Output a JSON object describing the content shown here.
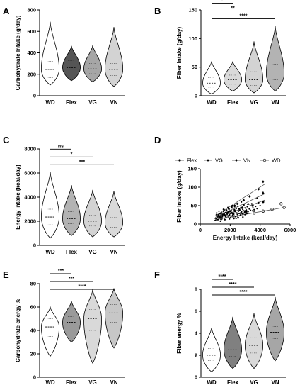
{
  "chart_data": [
    {
      "panel": "A",
      "type": "violin",
      "ylabel": "Carbohydrate Intake (g/day)",
      "categories": [
        "WD",
        "Flex",
        "VG",
        "VN"
      ],
      "ylim": [
        0,
        800
      ],
      "yticks": [
        "0",
        "200",
        "400",
        "600",
        "800"
      ],
      "fills": [
        "#ffffff",
        "#555555",
        "#a6a6a6",
        "#d3d3d3"
      ],
      "violins": [
        {
          "min": 100,
          "q1": 170,
          "median": 245,
          "q3": 320,
          "max": 690
        },
        {
          "min": 140,
          "q1": 220,
          "median": 262,
          "q3": 330,
          "max": 465
        },
        {
          "min": 130,
          "q1": 205,
          "median": 250,
          "q3": 300,
          "max": 470
        },
        {
          "min": 85,
          "q1": 190,
          "median": 245,
          "q3": 300,
          "max": 640
        }
      ],
      "significance": []
    },
    {
      "panel": "B",
      "type": "violin",
      "ylabel": "Fiber Intake (g/day)",
      "categories": [
        "WD",
        "Flex",
        "VG",
        "VN"
      ],
      "ylim": [
        0,
        150
      ],
      "yticks": [
        "0",
        "50",
        "100",
        "150"
      ],
      "fills": [
        "#ffffff",
        "#d9d9d9",
        "#d3d3d3",
        "#b3b3b3"
      ],
      "violins": [
        {
          "min": 3,
          "q1": 15,
          "median": 22,
          "q3": 32,
          "max": 60
        },
        {
          "min": 8,
          "q1": 20,
          "median": 28,
          "q3": 36,
          "max": 60
        },
        {
          "min": 5,
          "q1": 18,
          "median": 28,
          "q3": 42,
          "max": 95
        },
        {
          "min": 8,
          "q1": 28,
          "median": 38,
          "q3": 55,
          "max": 122
        }
      ],
      "significance": [
        {
          "from": "WD",
          "to": "Flex",
          "label": "*"
        },
        {
          "from": "WD",
          "to": "VG",
          "label": "**"
        },
        {
          "from": "WD",
          "to": "VN",
          "label": "****"
        }
      ]
    },
    {
      "panel": "C",
      "type": "violin",
      "ylabel": "Energy intake (kcal/day)",
      "categories": [
        "WD",
        "Flex",
        "VG",
        "VN"
      ],
      "ylim": [
        0,
        8000
      ],
      "yticks": [
        "0",
        "2000",
        "4000",
        "6000",
        "8000"
      ],
      "fills": [
        "#ffffff",
        "#b3b3b3",
        "#d3d3d3",
        "#d9d9d9"
      ],
      "violins": [
        {
          "min": 600,
          "q1": 1700,
          "median": 2350,
          "q3": 3000,
          "max": 6100
        },
        {
          "min": 800,
          "q1": 1800,
          "median": 2200,
          "q3": 2800,
          "max": 5000
        },
        {
          "min": 700,
          "q1": 1600,
          "median": 2000,
          "q3": 2500,
          "max": 4600
        },
        {
          "min": 700,
          "q1": 1500,
          "median": 1850,
          "q3": 2300,
          "max": 4500
        }
      ],
      "significance": [
        {
          "from": "WD",
          "to": "Flex",
          "label": "ns"
        },
        {
          "from": "WD",
          "to": "VG",
          "label": "*"
        },
        {
          "from": "WD",
          "to": "VN",
          "label": "***"
        }
      ]
    },
    {
      "panel": "D",
      "type": "scatter",
      "xlabel": "Energy Intake (kcal/day)",
      "ylabel": "Fiber Intake (g/day)",
      "xlim": [
        0,
        6000
      ],
      "ylim": [
        0,
        150
      ],
      "xticks": [
        "0",
        "2000",
        "4000",
        "6000"
      ],
      "yticks": [
        "0",
        "50",
        "100",
        "150"
      ],
      "legend_position": "top",
      "series": [
        {
          "name": "Flex",
          "marker": "filled-circle",
          "color": "#000000",
          "points": [
            [
              1200,
              18
            ],
            [
              1500,
              25
            ],
            [
              1800,
              30
            ],
            [
              2200,
              28
            ],
            [
              2600,
              40
            ],
            [
              3000,
              35
            ],
            [
              3500,
              50
            ],
            [
              4200,
              60
            ],
            [
              1700,
              22
            ],
            [
              2000,
              35
            ]
          ],
          "fit": [
            [
              1000,
              15
            ],
            [
              4300,
              65
            ]
          ]
        },
        {
          "name": "VG",
          "marker": "filled-triangle",
          "color": "#000000",
          "points": [
            [
              1300,
              20
            ],
            [
              1600,
              28
            ],
            [
              1900,
              32
            ],
            [
              2300,
              38
            ],
            [
              2800,
              45
            ],
            [
              3200,
              55
            ],
            [
              3800,
              70
            ],
            [
              4200,
              85
            ],
            [
              2100,
              30
            ]
          ],
          "fit": [
            [
              1000,
              18
            ],
            [
              4300,
              82
            ]
          ]
        },
        {
          "name": "VN",
          "marker": "filled-diamond",
          "color": "#000000",
          "points": [
            [
              1100,
              25
            ],
            [
              1400,
              30
            ],
            [
              1600,
              38
            ],
            [
              1900,
              42
            ],
            [
              2100,
              48
            ],
            [
              2500,
              55
            ],
            [
              2900,
              65
            ],
            [
              3300,
              75
            ],
            [
              3900,
              95
            ],
            [
              4200,
              115
            ],
            [
              2300,
              50
            ]
          ],
          "fit": [
            [
              1000,
              22
            ],
            [
              4300,
              108
            ]
          ]
        },
        {
          "name": "WD",
          "marker": "open-circle",
          "color": "#000000",
          "points": [
            [
              1000,
              12
            ],
            [
              1400,
              15
            ],
            [
              1800,
              20
            ],
            [
              2200,
              22
            ],
            [
              2600,
              25
            ],
            [
              3000,
              28
            ],
            [
              3600,
              30
            ],
            [
              4200,
              35
            ],
            [
              4800,
              40
            ],
            [
              5400,
              55
            ],
            [
              5600,
              45
            ],
            [
              2400,
              18
            ]
          ],
          "fit": [
            [
              1000,
              12
            ],
            [
              5600,
              45
            ]
          ]
        },
        {
          "name": "",
          "marker": "small-dot",
          "color": "#000000",
          "points": [
            [
              1000,
              10
            ],
            [
              1050,
              15
            ],
            [
              1120,
              20
            ],
            [
              1180,
              12
            ],
            [
              1220,
              25
            ],
            [
              1280,
              18
            ],
            [
              1320,
              28
            ],
            [
              1360,
              22
            ],
            [
              1400,
              14
            ],
            [
              1440,
              30
            ],
            [
              1480,
              20
            ],
            [
              1520,
              26
            ],
            [
              1560,
              34
            ],
            [
              1600,
              16
            ],
            [
              1640,
              24
            ],
            [
              1680,
              31
            ],
            [
              1720,
              19
            ],
            [
              1760,
              38
            ],
            [
              1800,
              27
            ],
            [
              1840,
              22
            ],
            [
              1880,
              33
            ],
            [
              1920,
              40
            ],
            [
              1960,
              25
            ],
            [
              2000,
              29
            ],
            [
              2040,
              18
            ],
            [
              2080,
              36
            ],
            [
              2120,
              44
            ],
            [
              2160,
              23
            ],
            [
              2200,
              31
            ],
            [
              2240,
              27
            ],
            [
              2280,
              39
            ],
            [
              2320,
              34
            ],
            [
              2360,
              21
            ],
            [
              2400,
              42
            ],
            [
              2440,
              30
            ],
            [
              2480,
              26
            ],
            [
              2520,
              48
            ],
            [
              2560,
              35
            ],
            [
              2600,
              29
            ],
            [
              2640,
              38
            ],
            [
              2680,
              24
            ],
            [
              2720,
              45
            ],
            [
              2760,
              33
            ],
            [
              2800,
              28
            ],
            [
              2840,
              40
            ],
            [
              2880,
              36
            ],
            [
              2920,
              52
            ],
            [
              2960,
              31
            ],
            [
              3000,
              26
            ],
            [
              3040,
              43
            ],
            [
              3080,
              38
            ],
            [
              3120,
              29
            ],
            [
              3160,
              47
            ],
            [
              3200,
              34
            ],
            [
              3280,
              41
            ],
            [
              3360,
              37
            ],
            [
              3440,
              55
            ],
            [
              3520,
              44
            ],
            [
              3600,
              39
            ],
            [
              3700,
              48
            ],
            [
              3800,
              42
            ],
            [
              3900,
              58
            ],
            [
              4000,
              50
            ],
            [
              1250,
              35
            ],
            [
              1550,
              40
            ],
            [
              1850,
              45
            ],
            [
              2150,
              50
            ],
            [
              2450,
              55
            ],
            [
              2750,
              60
            ],
            [
              1350,
              8
            ],
            [
              1650,
              12
            ],
            [
              1950,
              14
            ],
            [
              2250,
              15
            ],
            [
              2550,
              17
            ],
            [
              2850,
              19
            ],
            [
              1100,
              30
            ],
            [
              1900,
              23
            ],
            [
              2300,
              47
            ],
            [
              2700,
              30
            ],
            [
              3100,
              33
            ],
            [
              3500,
              36
            ]
          ]
        }
      ]
    },
    {
      "panel": "E",
      "type": "violin",
      "ylabel": "Carbohydrate energy %",
      "categories": [
        "WD",
        "Flex",
        "VG",
        "VN"
      ],
      "ylim": [
        0,
        80
      ],
      "yticks": [
        "0",
        "20",
        "40",
        "60",
        "80"
      ],
      "fills": [
        "#ffffff",
        "#9a9a9a",
        "#d9d9d9",
        "#c7c7c7"
      ],
      "violins": [
        {
          "min": 18,
          "q1": 35,
          "median": 43,
          "q3": 50,
          "max": 60
        },
        {
          "min": 30,
          "q1": 42,
          "median": 47,
          "q3": 52,
          "max": 65
        },
        {
          "min": 12,
          "q1": 40,
          "median": 50,
          "q3": 58,
          "max": 75
        },
        {
          "min": 25,
          "q1": 47,
          "median": 55,
          "q3": 62,
          "max": 76
        }
      ],
      "significance": [
        {
          "from": "WD",
          "to": "Flex",
          "label": "***"
        },
        {
          "from": "WD",
          "to": "VG",
          "label": "***"
        },
        {
          "from": "WD",
          "to": "VN",
          "label": "****"
        }
      ]
    },
    {
      "panel": "F",
      "type": "violin",
      "ylabel": "Fiber energy %",
      "categories": [
        "WD",
        "Flex",
        "VG",
        "VN"
      ],
      "ylim": [
        0,
        8
      ],
      "yticks": [
        "0",
        "2",
        "4",
        "6",
        "8"
      ],
      "fills": [
        "#ffffff",
        "#808080",
        "#d9d9d9",
        "#a6a6a6"
      ],
      "violins": [
        {
          "min": 0.5,
          "q1": 1.5,
          "median": 2.0,
          "q3": 2.6,
          "max": 4.5
        },
        {
          "min": 0.8,
          "q1": 1.9,
          "median": 2.5,
          "q3": 3.2,
          "max": 5.5
        },
        {
          "min": 0.8,
          "q1": 2.2,
          "median": 2.9,
          "q3": 3.6,
          "max": 5.8
        },
        {
          "min": 1.5,
          "q1": 3.5,
          "median": 4.1,
          "q3": 4.6,
          "max": 7.3
        }
      ],
      "significance": [
        {
          "from": "WD",
          "to": "Flex",
          "label": "****"
        },
        {
          "from": "WD",
          "to": "VG",
          "label": "****"
        },
        {
          "from": "WD",
          "to": "VN",
          "label": "****"
        }
      ]
    }
  ]
}
